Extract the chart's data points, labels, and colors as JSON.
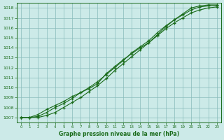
{
  "xlabel": "Graphe pression niveau de la mer (hPa)",
  "ylim": [
    1006.5,
    1018.5
  ],
  "xlim": [
    -0.5,
    23.5
  ],
  "yticks": [
    1007,
    1008,
    1009,
    1010,
    1011,
    1012,
    1013,
    1014,
    1015,
    1016,
    1017,
    1018
  ],
  "xticks": [
    0,
    1,
    2,
    3,
    4,
    5,
    6,
    7,
    8,
    9,
    10,
    11,
    12,
    13,
    14,
    15,
    16,
    17,
    18,
    19,
    20,
    21,
    22,
    23
  ],
  "bg_color": "#cceae8",
  "grid_color": "#88bbbb",
  "line_color": "#1a6b1a",
  "line1_x": [
    0,
    1,
    2,
    3,
    4,
    5,
    6,
    7,
    8,
    9,
    10,
    11,
    12,
    13,
    14,
    15,
    16,
    17,
    18,
    19,
    20,
    21,
    22,
    23
  ],
  "line1_y": [
    1007.0,
    1007.0,
    1007.3,
    1007.8,
    1008.2,
    1008.6,
    1009.1,
    1009.5,
    1009.9,
    1010.4,
    1011.4,
    1012.1,
    1012.8,
    1013.4,
    1014.0,
    1014.5,
    1015.2,
    1015.9,
    1016.5,
    1017.0,
    1017.5,
    1017.8,
    1018.0,
    1018.1
  ],
  "line2_x": [
    0,
    1,
    2,
    3,
    4,
    5,
    6,
    7,
    8,
    9,
    10,
    11,
    12,
    13,
    14,
    15,
    16,
    17,
    18,
    19,
    20,
    21,
    22,
    23
  ],
  "line2_y": [
    1007.0,
    1007.0,
    1007.1,
    1007.5,
    1008.0,
    1008.4,
    1008.9,
    1009.5,
    1010.0,
    1010.6,
    1011.3,
    1012.0,
    1012.7,
    1013.5,
    1014.1,
    1014.7,
    1015.5,
    1016.2,
    1016.8,
    1017.3,
    1017.8,
    1018.1,
    1018.2,
    1018.25
  ],
  "line3_x": [
    0,
    1,
    2,
    3,
    4,
    5,
    6,
    7,
    8,
    9,
    10,
    11,
    12,
    13,
    14,
    15,
    16,
    17,
    18,
    19,
    20,
    21,
    22,
    23
  ],
  "line3_y": [
    1007.0,
    1007.0,
    1007.0,
    1007.2,
    1007.5,
    1008.0,
    1008.5,
    1009.0,
    1009.6,
    1010.2,
    1010.9,
    1011.7,
    1012.4,
    1013.1,
    1013.8,
    1014.5,
    1015.3,
    1016.1,
    1016.8,
    1017.4,
    1018.0,
    1018.2,
    1018.3,
    1018.3
  ]
}
